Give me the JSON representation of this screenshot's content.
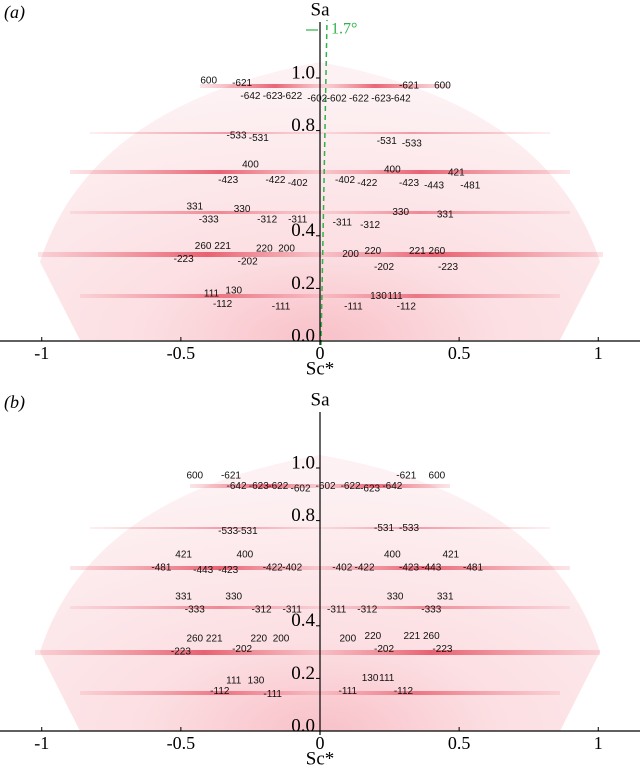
{
  "chart_data": [
    {
      "type": "scatter",
      "panel_label": "(a)",
      "ylabel": "Sa",
      "xlabel": "Sc*",
      "angle_label": "1.7°",
      "xlim": [
        -1.15,
        1.15
      ],
      "ylim": [
        0,
        1.2
      ],
      "xticks": [
        -1,
        -0.5,
        0,
        0.5,
        1
      ],
      "yticks": [
        {
          "value": 0,
          "label": "0.0"
        },
        0.2,
        0.4,
        0.8,
        {
          "value": 1,
          "label": "1.0"
        }
      ],
      "annotations": [
        {
          "text": "600",
          "x": -0.4,
          "y": 0.99
        },
        {
          "text": "-621",
          "x": -0.28,
          "y": 0.98
        },
        {
          "text": "-642",
          "x": -0.25,
          "y": 0.93
        },
        {
          "text": "-623",
          "x": -0.17,
          "y": 0.93
        },
        {
          "text": "-622",
          "x": -0.1,
          "y": 0.93
        },
        {
          "text": "-602",
          "x": -0.01,
          "y": 0.92
        },
        {
          "text": "-602",
          "x": 0.06,
          "y": 0.92
        },
        {
          "text": "-622",
          "x": 0.14,
          "y": 0.92
        },
        {
          "text": "-623",
          "x": 0.22,
          "y": 0.92
        },
        {
          "text": "-642",
          "x": 0.29,
          "y": 0.92
        },
        {
          "text": "-621",
          "x": 0.32,
          "y": 0.97
        },
        {
          "text": "600",
          "x": 0.44,
          "y": 0.97
        },
        {
          "text": "-533",
          "x": -0.3,
          "y": 0.78
        },
        {
          "text": "-531",
          "x": -0.22,
          "y": 0.77
        },
        {
          "text": "-531",
          "x": 0.24,
          "y": 0.76
        },
        {
          "text": "-533",
          "x": 0.33,
          "y": 0.75
        },
        {
          "text": "400",
          "x": -0.25,
          "y": 0.67
        },
        {
          "text": "-423",
          "x": -0.33,
          "y": 0.61
        },
        {
          "text": "-422",
          "x": -0.16,
          "y": 0.61
        },
        {
          "text": "-402",
          "x": -0.08,
          "y": 0.6
        },
        {
          "text": "-402",
          "x": 0.09,
          "y": 0.61
        },
        {
          "text": "-422",
          "x": 0.17,
          "y": 0.6
        },
        {
          "text": "400",
          "x": 0.26,
          "y": 0.65
        },
        {
          "text": "-423",
          "x": 0.32,
          "y": 0.6
        },
        {
          "text": "-443",
          "x": 0.41,
          "y": 0.59
        },
        {
          "text": "421",
          "x": 0.49,
          "y": 0.64
        },
        {
          "text": "-481",
          "x": 0.54,
          "y": 0.59
        },
        {
          "text": "331",
          "x": -0.45,
          "y": 0.51
        },
        {
          "text": "-333",
          "x": -0.4,
          "y": 0.46
        },
        {
          "text": "330",
          "x": -0.28,
          "y": 0.5
        },
        {
          "text": "-312",
          "x": -0.19,
          "y": 0.46
        },
        {
          "text": "-311",
          "x": -0.08,
          "y": 0.46
        },
        {
          "text": "-311",
          "x": 0.08,
          "y": 0.45
        },
        {
          "text": "-312",
          "x": 0.18,
          "y": 0.44
        },
        {
          "text": "330",
          "x": 0.29,
          "y": 0.49
        },
        {
          "text": "331",
          "x": 0.45,
          "y": 0.48
        },
        {
          "text": "260",
          "x": -0.42,
          "y": 0.36
        },
        {
          "text": "221",
          "x": -0.35,
          "y": 0.36
        },
        {
          "text": "-223",
          "x": -0.49,
          "y": 0.31
        },
        {
          "text": "220",
          "x": -0.2,
          "y": 0.35
        },
        {
          "text": "200",
          "x": -0.12,
          "y": 0.35
        },
        {
          "text": "-202",
          "x": -0.26,
          "y": 0.3
        },
        {
          "text": "200",
          "x": 0.11,
          "y": 0.33
        },
        {
          "text": "220",
          "x": 0.19,
          "y": 0.34
        },
        {
          "text": "221",
          "x": 0.35,
          "y": 0.34
        },
        {
          "text": "260",
          "x": 0.42,
          "y": 0.34
        },
        {
          "text": "-202",
          "x": 0.23,
          "y": 0.28
        },
        {
          "text": "-223",
          "x": 0.46,
          "y": 0.28
        },
        {
          "text": "111",
          "x": -0.39,
          "y": 0.18
        },
        {
          "text": "130",
          "x": -0.31,
          "y": 0.19
        },
        {
          "text": "-112",
          "x": -0.35,
          "y": 0.14
        },
        {
          "text": "-111",
          "x": -0.14,
          "y": 0.13
        },
        {
          "text": "-111",
          "x": 0.12,
          "y": 0.13
        },
        {
          "text": "130",
          "x": 0.21,
          "y": 0.17
        },
        {
          "text": "111",
          "x": 0.27,
          "y": 0.17
        },
        {
          "text": "-112",
          "x": 0.31,
          "y": 0.13
        }
      ]
    },
    {
      "type": "scatter",
      "panel_label": "(b)",
      "ylabel": "Sa",
      "xlabel": "Sc*",
      "xlim": [
        -1.15,
        1.15
      ],
      "ylim": [
        0,
        1.2
      ],
      "xticks": [
        -1,
        -0.5,
        0,
        0.5,
        1
      ],
      "yticks": [
        {
          "value": 0,
          "label": "0.0"
        },
        0.2,
        0.4,
        0.8,
        {
          "value": 1,
          "label": "1.0"
        }
      ],
      "annotations": [
        {
          "text": "600",
          "x": -0.45,
          "y": 0.97
        },
        {
          "text": "-621",
          "x": -0.32,
          "y": 0.97
        },
        {
          "text": "-642",
          "x": -0.3,
          "y": 0.93
        },
        {
          "text": "-623",
          "x": -0.22,
          "y": 0.93
        },
        {
          "text": "-622",
          "x": -0.15,
          "y": 0.93
        },
        {
          "text": "-602",
          "x": -0.07,
          "y": 0.92
        },
        {
          "text": "-602",
          "x": 0.02,
          "y": 0.93
        },
        {
          "text": "-622",
          "x": 0.11,
          "y": 0.93
        },
        {
          "text": "-623",
          "x": 0.18,
          "y": 0.92
        },
        {
          "text": "-642",
          "x": 0.26,
          "y": 0.93
        },
        {
          "text": "-621",
          "x": 0.31,
          "y": 0.97
        },
        {
          "text": "600",
          "x": 0.42,
          "y": 0.97
        },
        {
          "text": "-533",
          "x": -0.33,
          "y": 0.76
        },
        {
          "text": "-531",
          "x": -0.26,
          "y": 0.76
        },
        {
          "text": "-531",
          "x": 0.23,
          "y": 0.77
        },
        {
          "text": "-533",
          "x": 0.32,
          "y": 0.77
        },
        {
          "text": "421",
          "x": -0.49,
          "y": 0.67
        },
        {
          "text": "-481",
          "x": -0.57,
          "y": 0.62
        },
        {
          "text": "400",
          "x": -0.27,
          "y": 0.67
        },
        {
          "text": "-443",
          "x": -0.42,
          "y": 0.61
        },
        {
          "text": "-423",
          "x": -0.33,
          "y": 0.61
        },
        {
          "text": "-422",
          "x": -0.17,
          "y": 0.62
        },
        {
          "text": "-402",
          "x": -0.1,
          "y": 0.62
        },
        {
          "text": "-402",
          "x": 0.08,
          "y": 0.62
        },
        {
          "text": "-422",
          "x": 0.16,
          "y": 0.62
        },
        {
          "text": "400",
          "x": 0.26,
          "y": 0.67
        },
        {
          "text": "-423",
          "x": 0.32,
          "y": 0.62
        },
        {
          "text": "-443",
          "x": 0.4,
          "y": 0.62
        },
        {
          "text": "421",
          "x": 0.47,
          "y": 0.67
        },
        {
          "text": "-481",
          "x": 0.55,
          "y": 0.62
        },
        {
          "text": "331",
          "x": -0.49,
          "y": 0.51
        },
        {
          "text": "-333",
          "x": -0.45,
          "y": 0.46
        },
        {
          "text": "330",
          "x": -0.31,
          "y": 0.51
        },
        {
          "text": "-312",
          "x": -0.21,
          "y": 0.46
        },
        {
          "text": "-311",
          "x": -0.1,
          "y": 0.46
        },
        {
          "text": "-311",
          "x": 0.06,
          "y": 0.46
        },
        {
          "text": "-312",
          "x": 0.17,
          "y": 0.46
        },
        {
          "text": "330",
          "x": 0.27,
          "y": 0.51
        },
        {
          "text": "331",
          "x": 0.45,
          "y": 0.51
        },
        {
          "text": "-333",
          "x": 0.4,
          "y": 0.46
        },
        {
          "text": "260",
          "x": -0.45,
          "y": 0.35
        },
        {
          "text": "221",
          "x": -0.38,
          "y": 0.35
        },
        {
          "text": "-223",
          "x": -0.5,
          "y": 0.3
        },
        {
          "text": "220",
          "x": -0.22,
          "y": 0.35
        },
        {
          "text": "200",
          "x": -0.14,
          "y": 0.35
        },
        {
          "text": "-202",
          "x": -0.28,
          "y": 0.31
        },
        {
          "text": "200",
          "x": 0.1,
          "y": 0.35
        },
        {
          "text": "220",
          "x": 0.19,
          "y": 0.36
        },
        {
          "text": "-202",
          "x": 0.23,
          "y": 0.31
        },
        {
          "text": "221",
          "x": 0.33,
          "y": 0.36
        },
        {
          "text": "260",
          "x": 0.4,
          "y": 0.36
        },
        {
          "text": "-223",
          "x": 0.44,
          "y": 0.31
        },
        {
          "text": "111",
          "x": -0.31,
          "y": 0.19
        },
        {
          "text": "130",
          "x": -0.23,
          "y": 0.19
        },
        {
          "text": "-112",
          "x": -0.36,
          "y": 0.15
        },
        {
          "text": "-111",
          "x": -0.17,
          "y": 0.14
        },
        {
          "text": "-111",
          "x": 0.1,
          "y": 0.15
        },
        {
          "text": "130",
          "x": 0.18,
          "y": 0.2
        },
        {
          "text": "111",
          "x": 0.24,
          "y": 0.2
        },
        {
          "text": "-112",
          "x": 0.3,
          "y": 0.15
        }
      ]
    }
  ]
}
